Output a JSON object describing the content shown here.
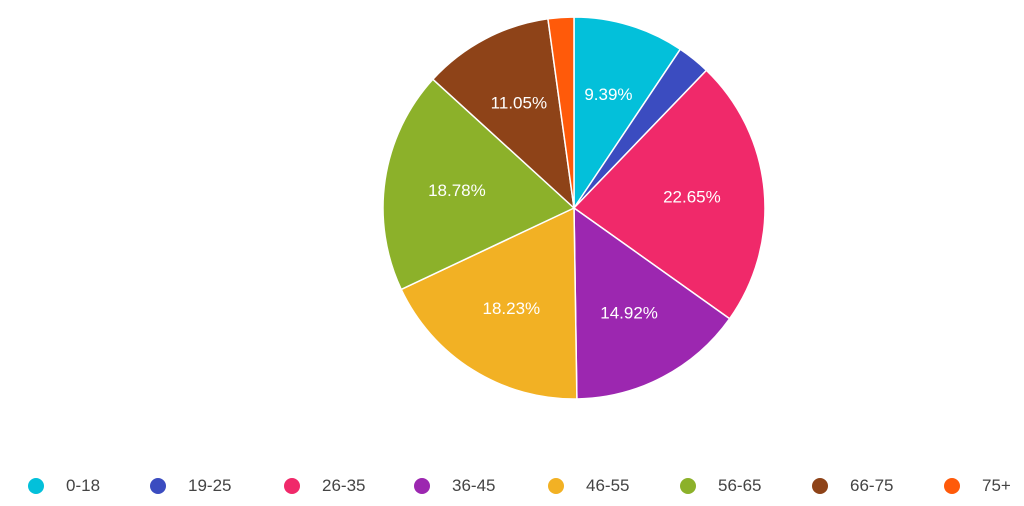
{
  "chart_data": {
    "type": "pie",
    "title": "",
    "slices": [
      {
        "label": "0-18",
        "value": 9.39,
        "display": "9.39%",
        "color": "#03C0DA"
      },
      {
        "label": "19-25",
        "value": 2.8,
        "display": "",
        "color": "#3B4CC0"
      },
      {
        "label": "26-35",
        "value": 22.65,
        "display": "22.65%",
        "color": "#F0296A"
      },
      {
        "label": "36-45",
        "value": 14.92,
        "display": "14.92%",
        "color": "#9C27B0"
      },
      {
        "label": "46-55",
        "value": 18.23,
        "display": "18.23%",
        "color": "#F2B124"
      },
      {
        "label": "56-65",
        "value": 18.78,
        "display": "18.78%",
        "color": "#8CB12A"
      },
      {
        "label": "66-75",
        "value": 11.05,
        "display": "11.05%",
        "color": "#8E4318"
      },
      {
        "label": "75+",
        "value": 2.18,
        "display": "",
        "color": "#FF5A0A"
      }
    ],
    "legend_position": "bottom",
    "start_angle": "top, clockwise"
  }
}
